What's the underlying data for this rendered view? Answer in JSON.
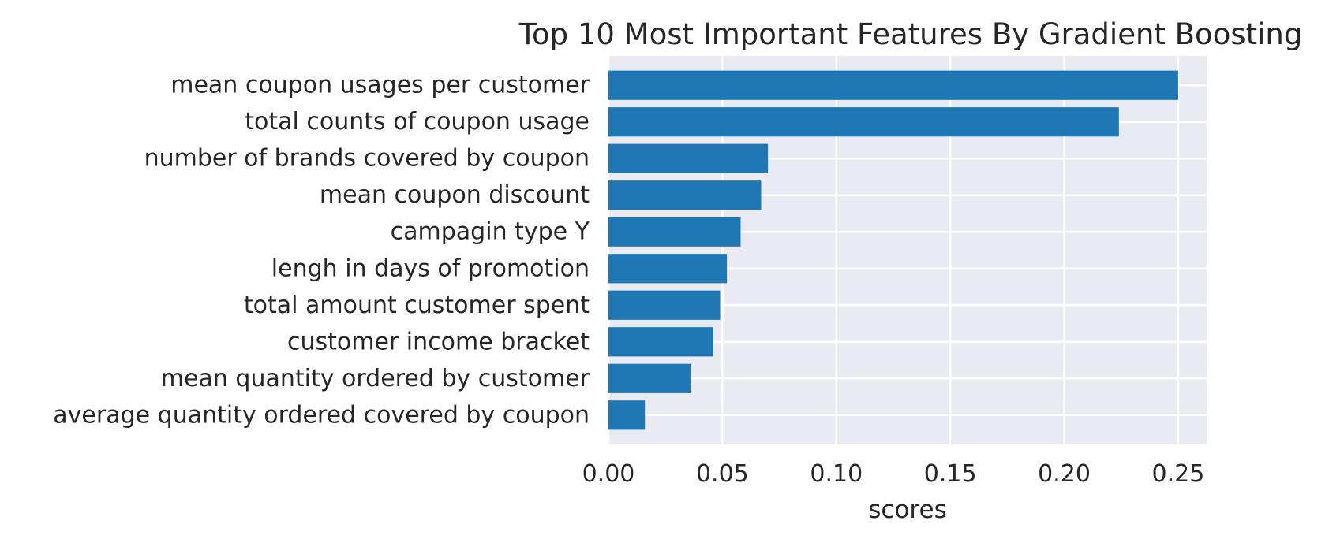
{
  "chart_data": {
    "type": "bar",
    "orientation": "horizontal",
    "title": "Top 10 Most Important Features By Gradient Boosting",
    "xlabel": "scores",
    "ylabel": "",
    "categories": [
      "mean coupon usages per customer",
      "total counts of coupon usage",
      "number of brands covered by coupon",
      "mean coupon discount",
      "campagin type Y",
      "lengh in days of promotion",
      "total amount customer spent",
      "customer income bracket",
      "mean quantity ordered by customer",
      "average quantity ordered covered by coupon"
    ],
    "values": [
      0.25,
      0.224,
      0.07,
      0.067,
      0.058,
      0.052,
      0.049,
      0.046,
      0.036,
      0.016
    ],
    "xlim": [
      0.0,
      0.2625
    ],
    "xticks": [
      "0.00",
      "0.05",
      "0.10",
      "0.15",
      "0.20",
      "0.25"
    ],
    "grid": true,
    "legend": "none",
    "colors": {
      "bar": "#1f77b4",
      "plot_background": "#eaeaf2",
      "grid": "#ffffff",
      "text": "#262626"
    }
  }
}
